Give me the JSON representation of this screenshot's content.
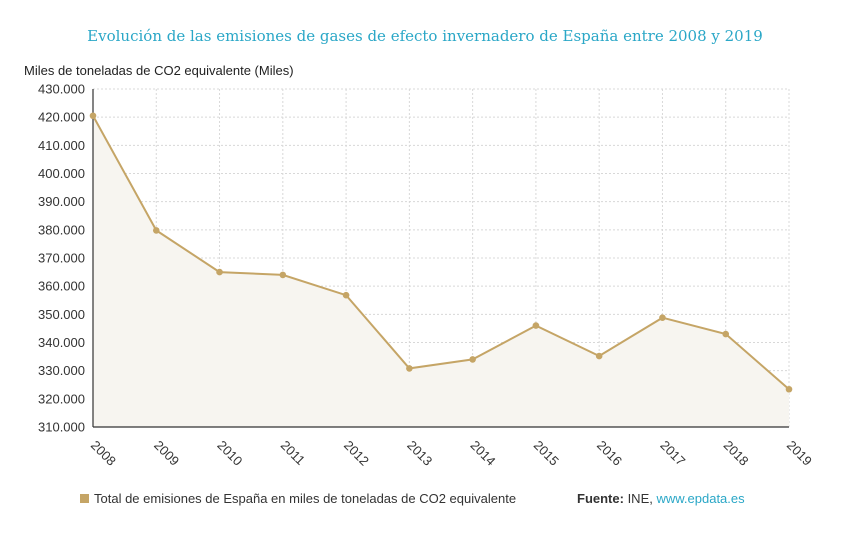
{
  "colors": {
    "line": "#c5a566",
    "area": "#f7f5f0",
    "title": "#2aa7c7",
    "grid": "#d8d8d8",
    "link": "#2aa7c7"
  },
  "chart_data": {
    "type": "area",
    "title": "Evolución de las emisiones de gases de efecto invernadero de España entre 2008 y 2019",
    "ylabel": "Miles de toneladas de CO2 equivalente (Miles)",
    "xlabel": "",
    "x": [
      "2008",
      "2009",
      "2010",
      "2011",
      "2012",
      "2013",
      "2014",
      "2015",
      "2016",
      "2017",
      "2018",
      "2019"
    ],
    "series": [
      {
        "name": "Total de emisiones de España en miles de toneladas de CO2 equivalente",
        "values": [
          420500,
          379800,
          365000,
          364000,
          356800,
          330800,
          334000,
          346000,
          335200,
          348800,
          343000,
          323400
        ]
      }
    ],
    "yticks": [
      "310.000",
      "320.000",
      "330.000",
      "340.000",
      "350.000",
      "360.000",
      "370.000",
      "380.000",
      "390.000",
      "400.000",
      "410.000",
      "420.000",
      "430.000"
    ],
    "ylim": [
      310000,
      430000
    ],
    "grid": true,
    "legend_position": "bottom-left"
  },
  "footer": {
    "legend_label": "Total de emisiones de España en miles de toneladas de CO2 equivalente",
    "source_label": "Fuente:",
    "source_name": " INE, ",
    "source_link": "www.epdata.es"
  }
}
